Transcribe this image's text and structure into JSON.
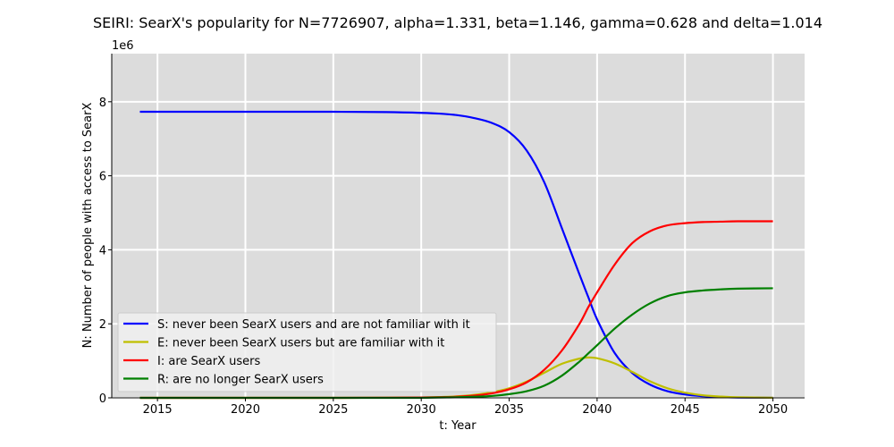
{
  "chart_data": {
    "type": "line",
    "title": "SEIRI: SearX's popularity for N=7726907, alpha=1.331, beta=1.146, gamma=0.628 and delta=1.014",
    "xlabel": "t: Year",
    "ylabel": "N: Number of people with access to SearX",
    "y_offset_label": "1e6",
    "xlim": [
      2012.4,
      2051.8
    ],
    "ylim": [
      0,
      9.3
    ],
    "x_ticks": [
      2015,
      2020,
      2025,
      2030,
      2035,
      2040,
      2045,
      2050
    ],
    "y_ticks": [
      0,
      2,
      4,
      6,
      8
    ],
    "grid": true,
    "legend_position": "lower-left",
    "x": [
      2014,
      2020,
      2025,
      2028,
      2030,
      2031,
      2032,
      2033,
      2034,
      2035,
      2036,
      2037,
      2038,
      2039,
      2039.5,
      2040,
      2041,
      2042,
      2043,
      2044,
      2045,
      2046,
      2047,
      2048,
      2050
    ],
    "series": [
      {
        "name": "S: never been SearX users and are not familiar with it",
        "color": "#0000ff",
        "values": [
          7.73,
          7.73,
          7.73,
          7.72,
          7.7,
          7.68,
          7.64,
          7.56,
          7.43,
          7.18,
          6.68,
          5.82,
          4.58,
          3.33,
          2.72,
          2.12,
          1.21,
          0.67,
          0.36,
          0.18,
          0.09,
          0.045,
          0.02,
          0.01,
          0.002
        ]
      },
      {
        "name": "E: never been SearX users but are familiar with it",
        "color": "#bfbf00",
        "values": [
          0.0,
          0.0,
          0.0,
          0.005,
          0.01,
          0.02,
          0.04,
          0.08,
          0.15,
          0.26,
          0.44,
          0.68,
          0.92,
          1.06,
          1.09,
          1.07,
          0.93,
          0.7,
          0.45,
          0.26,
          0.14,
          0.07,
          0.035,
          0.015,
          0.003
        ]
      },
      {
        "name": "I: are SearX users",
        "color": "#ff0000",
        "values": [
          0.0,
          0.0,
          0.0,
          0.005,
          0.01,
          0.02,
          0.03,
          0.06,
          0.12,
          0.23,
          0.42,
          0.76,
          1.28,
          2.0,
          2.45,
          2.85,
          3.6,
          4.18,
          4.5,
          4.66,
          4.72,
          4.75,
          4.76,
          4.77,
          4.77
        ]
      },
      {
        "name": "R: are no longer SearX users",
        "color": "#008000",
        "values": [
          0.0,
          0.0,
          0.0,
          0.0,
          0.0,
          0.01,
          0.015,
          0.03,
          0.05,
          0.1,
          0.18,
          0.33,
          0.6,
          0.98,
          1.2,
          1.42,
          1.87,
          2.25,
          2.55,
          2.75,
          2.85,
          2.9,
          2.93,
          2.95,
          2.96
        ]
      }
    ]
  }
}
